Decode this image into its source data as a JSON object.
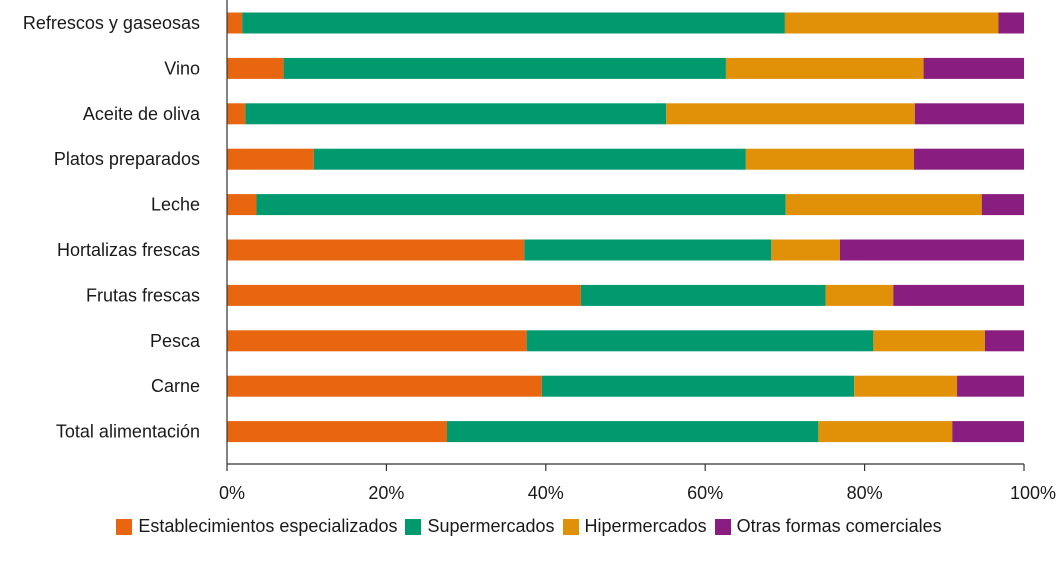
{
  "chart_data": {
    "type": "bar",
    "orientation": "horizontal",
    "stacked": true,
    "percent": true,
    "title": "",
    "xlabel": "",
    "ylabel": "",
    "xlim": [
      0,
      100
    ],
    "x_ticks": [
      "0%",
      "20%",
      "40%",
      "60%",
      "80%",
      "100%"
    ],
    "grid": false,
    "legend_position": "bottom",
    "categories": [
      "Refrescos y gaseosas",
      "Vino",
      "Aceite de oliva",
      "Platos preparados",
      "Leche",
      "Hortalizas frescas",
      "Frutas frescas",
      "Pesca",
      "Carne",
      "Total alimentación"
    ],
    "series": [
      {
        "name": "Establecimientos especializados",
        "color": "#e8660f",
        "values": [
          1.9,
          7.1,
          2.3,
          10.9,
          3.7,
          37.3,
          44.4,
          37.6,
          39.5,
          27.6
        ]
      },
      {
        "name": "Supermercados",
        "color": "#009a6e",
        "values": [
          68.1,
          55.5,
          52.8,
          54.2,
          66.4,
          31.0,
          30.7,
          43.5,
          39.2,
          46.6
        ]
      },
      {
        "name": "Hipermercados",
        "color": "#e09108",
        "values": [
          26.8,
          24.8,
          31.2,
          21.1,
          24.6,
          8.6,
          8.5,
          14.0,
          12.9,
          16.8
        ]
      },
      {
        "name": "Otras formas comerciales",
        "color": "#8a1e80",
        "values": [
          3.2,
          12.6,
          13.7,
          13.8,
          5.3,
          23.1,
          16.4,
          4.9,
          8.4,
          9.0
        ]
      }
    ]
  }
}
